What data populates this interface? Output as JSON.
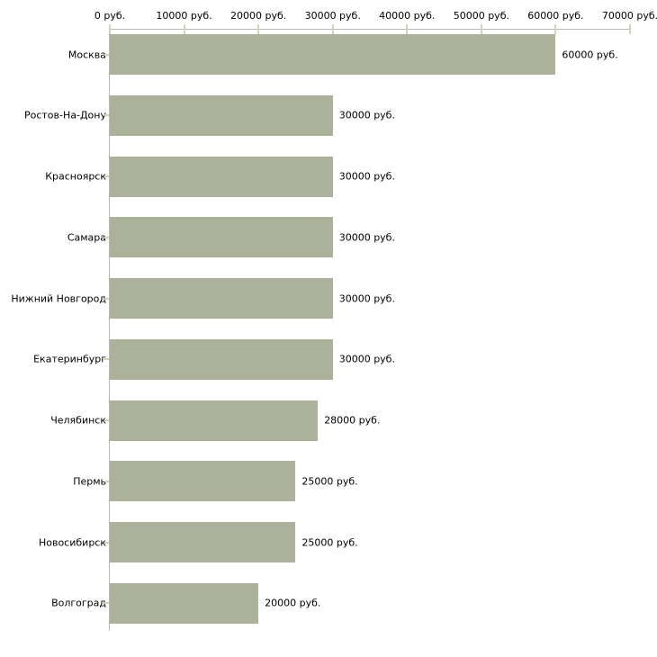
{
  "chart_data": {
    "type": "bar",
    "orientation": "horizontal",
    "title": "",
    "xlabel": "",
    "ylabel": "",
    "categories": [
      "Москва",
      "Ростов-На-Дону",
      "Красноярск",
      "Самара",
      "Нижний Новгород",
      "Екатеринбург",
      "Челябинск",
      "Пермь",
      "Новосибирск",
      "Волгоград"
    ],
    "values": [
      60000,
      30000,
      30000,
      30000,
      30000,
      30000,
      28000,
      25000,
      25000,
      20000
    ],
    "value_labels": [
      "60000 руб.",
      "30000 руб.",
      "30000 руб.",
      "30000 руб.",
      "30000 руб.",
      "30000 руб.",
      "28000 руб.",
      "25000 руб.",
      "25000 руб.",
      "20000 руб."
    ],
    "x_ticks": [
      0,
      10000,
      20000,
      30000,
      40000,
      50000,
      60000,
      70000
    ],
    "x_tick_labels": [
      "0 руб.",
      "10000 руб.",
      "20000 руб.",
      "30000 руб.",
      "40000 руб.",
      "50000 руб.",
      "60000 руб.",
      "70000 руб."
    ],
    "xlim": [
      0,
      70000
    ],
    "unit": "руб.",
    "grid": false,
    "legend": false,
    "colors": {
      "bar": "#acb19a",
      "tick": "#d2d4b4",
      "axis_line": "#b8b8b8",
      "text": "#000000",
      "background": "#ffffff"
    }
  }
}
